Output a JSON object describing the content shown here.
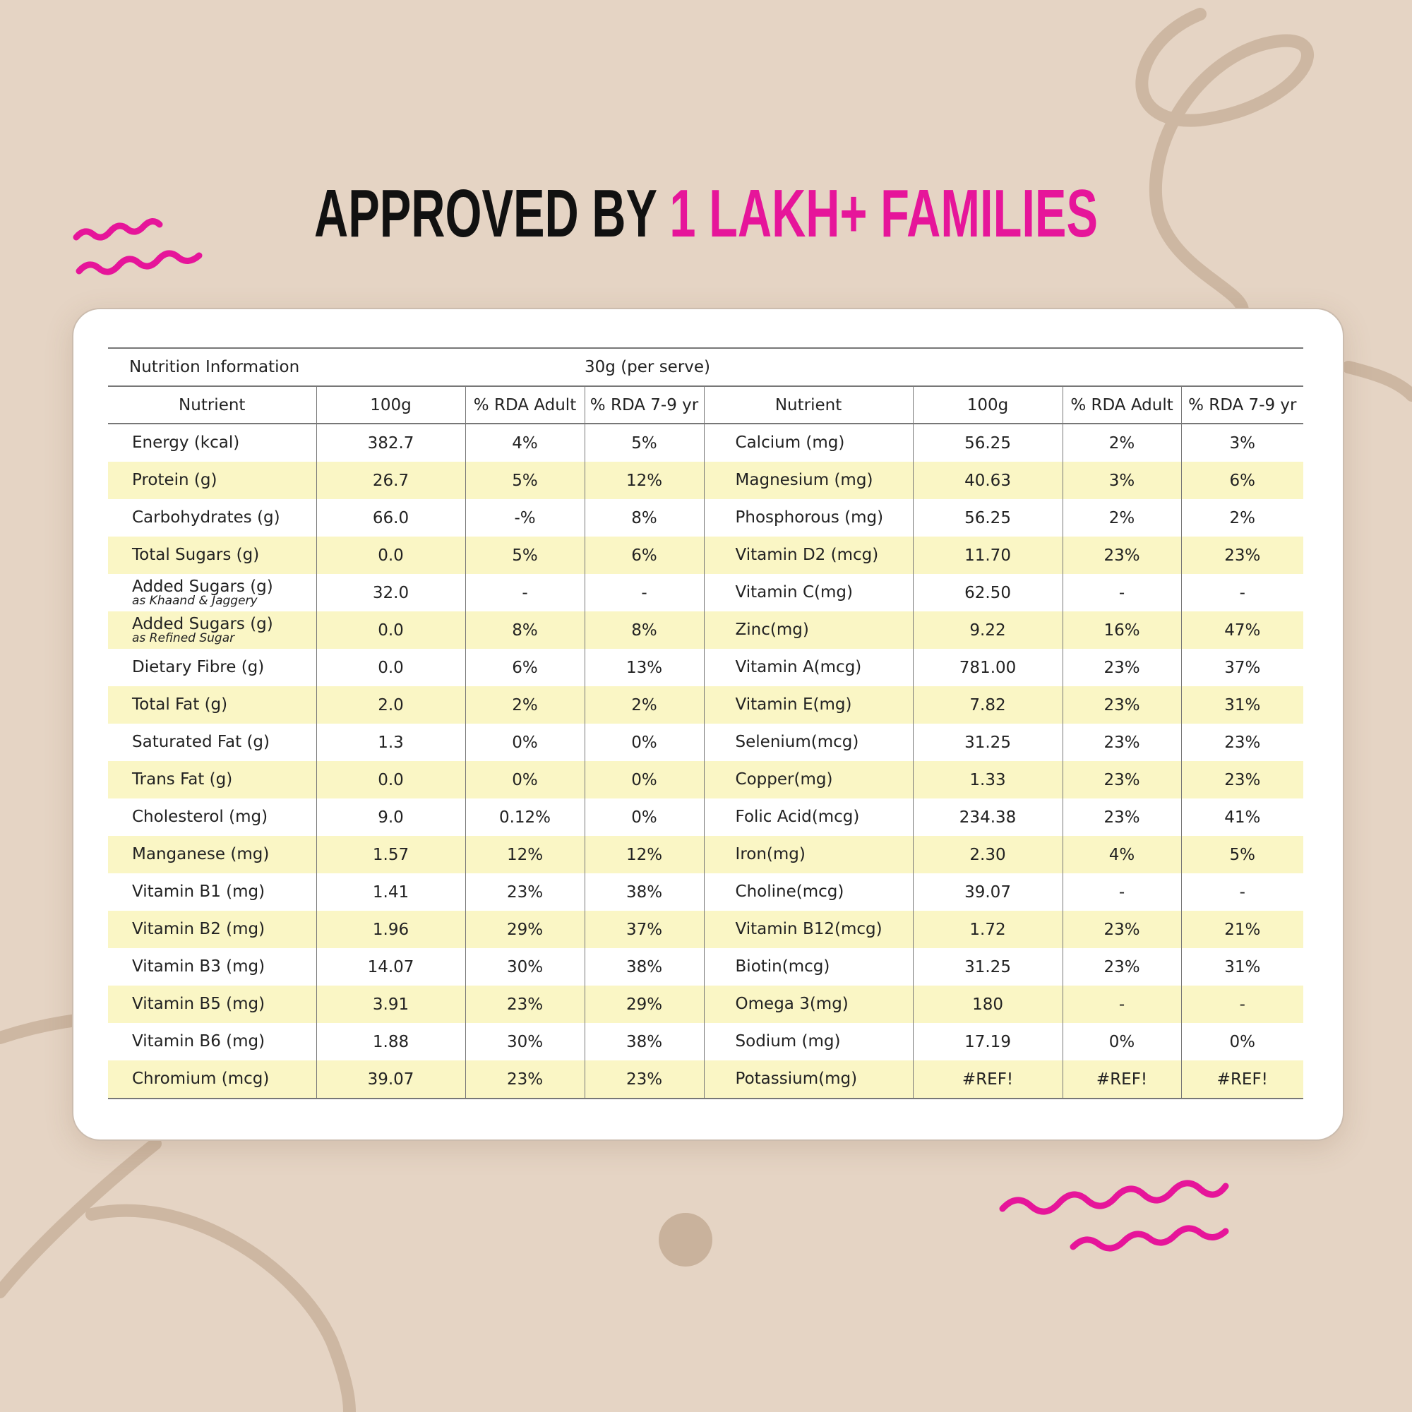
{
  "header": {
    "title_lead": "APPROVED BY",
    "title_highlight": "1 LAKH+ FAMILIES"
  },
  "table": {
    "caption": "Nutrition Information",
    "serving": "30g (per serve)",
    "columns": [
      "Nutrient",
      "100g",
      "% RDA Adult",
      "% RDA 7-9 yr",
      "Nutrient",
      "100g",
      "% RDA Adult",
      "% RDA 7-9 yr"
    ],
    "rows": [
      {
        "cells": [
          "Energy (kcal)",
          "382.7",
          "4%",
          "5%",
          "Calcium (mg)",
          "56.25",
          "2%",
          "3%"
        ]
      },
      {
        "cells": [
          "Protein (g)",
          "26.7",
          "5%",
          "12%",
          "Magnesium (mg)",
          "40.63",
          "3%",
          "6%"
        ]
      },
      {
        "cells": [
          "Carbohydrates (g)",
          "66.0",
          "-%",
          "8%",
          "Phosphorous (mg)",
          "56.25",
          "2%",
          "2%"
        ]
      },
      {
        "cells": [
          "Total Sugars (g)",
          "0.0",
          "5%",
          "6%",
          "Vitamin D2 (mcg)",
          "11.70",
          "23%",
          "23%"
        ]
      },
      {
        "cells": [
          "Added Sugars (g)",
          "32.0",
          "-",
          "-",
          "Vitamin C(mg)",
          "62.50",
          "-",
          "-"
        ],
        "note": "as Khaand & Jaggery"
      },
      {
        "cells": [
          "Added Sugars (g)",
          "0.0",
          "8%",
          "8%",
          "Zinc(mg)",
          "9.22",
          "16%",
          "47%"
        ],
        "note": "as Refined Sugar"
      },
      {
        "cells": [
          "Dietary Fibre (g)",
          "0.0",
          "6%",
          "13%",
          "Vitamin A(mcg)",
          "781.00",
          "23%",
          "37%"
        ]
      },
      {
        "cells": [
          "Total Fat (g)",
          "2.0",
          "2%",
          "2%",
          "Vitamin E(mg)",
          "7.82",
          "23%",
          "31%"
        ]
      },
      {
        "cells": [
          "Saturated Fat (g)",
          "1.3",
          "0%",
          "0%",
          "Selenium(mcg)",
          "31.25",
          "23%",
          "23%"
        ]
      },
      {
        "cells": [
          "Trans Fat (g)",
          "0.0",
          "0%",
          "0%",
          "Copper(mg)",
          "1.33",
          "23%",
          "23%"
        ]
      },
      {
        "cells": [
          "Cholesterol (mg)",
          "9.0",
          "0.12%",
          "0%",
          "Folic Acid(mcg)",
          "234.38",
          "23%",
          "41%"
        ]
      },
      {
        "cells": [
          "Manganese (mg)",
          "1.57",
          "12%",
          "12%",
          "Iron(mg)",
          "2.30",
          "4%",
          "5%"
        ]
      },
      {
        "cells": [
          "Vitamin B1 (mg)",
          "1.41",
          "23%",
          "38%",
          "Choline(mcg)",
          "39.07",
          "-",
          "-"
        ]
      },
      {
        "cells": [
          "Vitamin B2 (mg)",
          "1.96",
          "29%",
          "37%",
          "Vitamin B12(mcg)",
          "1.72",
          "23%",
          "21%"
        ]
      },
      {
        "cells": [
          "Vitamin B3 (mg)",
          "14.07",
          "30%",
          "38%",
          "Biotin(mcg)",
          "31.25",
          "23%",
          "31%"
        ]
      },
      {
        "cells": [
          "Vitamin B5 (mg)",
          "3.91",
          "23%",
          "29%",
          "Omega 3(mg)",
          "180",
          "-",
          "-"
        ]
      },
      {
        "cells": [
          "Vitamin B6 (mg)",
          "1.88",
          "30%",
          "38%",
          "Sodium (mg)",
          "17.19",
          "0%",
          "0%"
        ]
      },
      {
        "cells": [
          "Chromium (mcg)",
          "39.07",
          "23%",
          "23%",
          "Potassium(mg)",
          "#REF!",
          "#REF!",
          "#REF!"
        ]
      }
    ]
  }
}
